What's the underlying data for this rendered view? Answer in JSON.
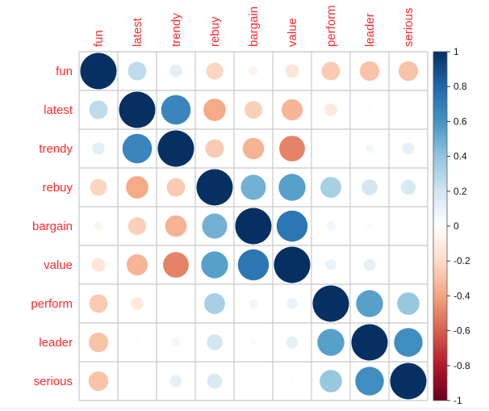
{
  "chart_data": {
    "type": "heatmap",
    "subtype": "correlation-circle",
    "title": "",
    "variables": [
      "fun",
      "latest",
      "trendy",
      "rebuy",
      "bargain",
      "value",
      "perform",
      "leader",
      "serious"
    ],
    "matrix": [
      [
        1.0,
        0.26,
        0.12,
        -0.22,
        -0.06,
        -0.14,
        -0.26,
        -0.29,
        -0.29
      ],
      [
        0.26,
        1.0,
        0.66,
        -0.38,
        -0.24,
        -0.34,
        -0.12,
        0.02,
        0.01
      ],
      [
        0.12,
        0.66,
        1.0,
        -0.26,
        -0.35,
        -0.5,
        0.0,
        0.06,
        0.11
      ],
      [
        -0.22,
        -0.38,
        -0.26,
        1.0,
        0.48,
        0.55,
        0.33,
        0.19,
        0.17
      ],
      [
        -0.06,
        -0.24,
        -0.35,
        0.48,
        1.0,
        0.73,
        0.06,
        0.03,
        0.01
      ],
      [
        -0.14,
        -0.34,
        -0.5,
        0.55,
        0.73,
        1.0,
        0.09,
        0.11,
        0.02
      ],
      [
        -0.26,
        -0.12,
        0.0,
        0.33,
        0.06,
        0.09,
        1.0,
        0.55,
        0.38
      ],
      [
        -0.29,
        0.02,
        0.06,
        0.19,
        0.03,
        0.11,
        0.55,
        1.0,
        0.62
      ],
      [
        -0.29,
        0.01,
        0.11,
        0.17,
        0.01,
        0.02,
        0.38,
        0.62,
        1.0
      ]
    ],
    "color_scale": {
      "range": [
        -1,
        1
      ],
      "ticks": [
        "1",
        "0.8",
        "0.6",
        "0.4",
        "0.2",
        "0",
        "-0.2",
        "-0.4",
        "-0.6",
        "-0.8",
        "-1"
      ],
      "tick_values": [
        1,
        0.8,
        0.6,
        0.4,
        0.2,
        0,
        -0.2,
        -0.4,
        -0.6,
        -0.8,
        -1
      ],
      "palette": [
        "#67001F",
        "#B2182B",
        "#D6604D",
        "#F4A582",
        "#FDDBC7",
        "#FFFFFF",
        "#D1E5F0",
        "#92C5DE",
        "#4393C3",
        "#2166AC",
        "#053061"
      ]
    },
    "label_color": "#FF2A2A",
    "grid_color": "#C8C8C8",
    "legend_position": "right",
    "grid": true
  }
}
